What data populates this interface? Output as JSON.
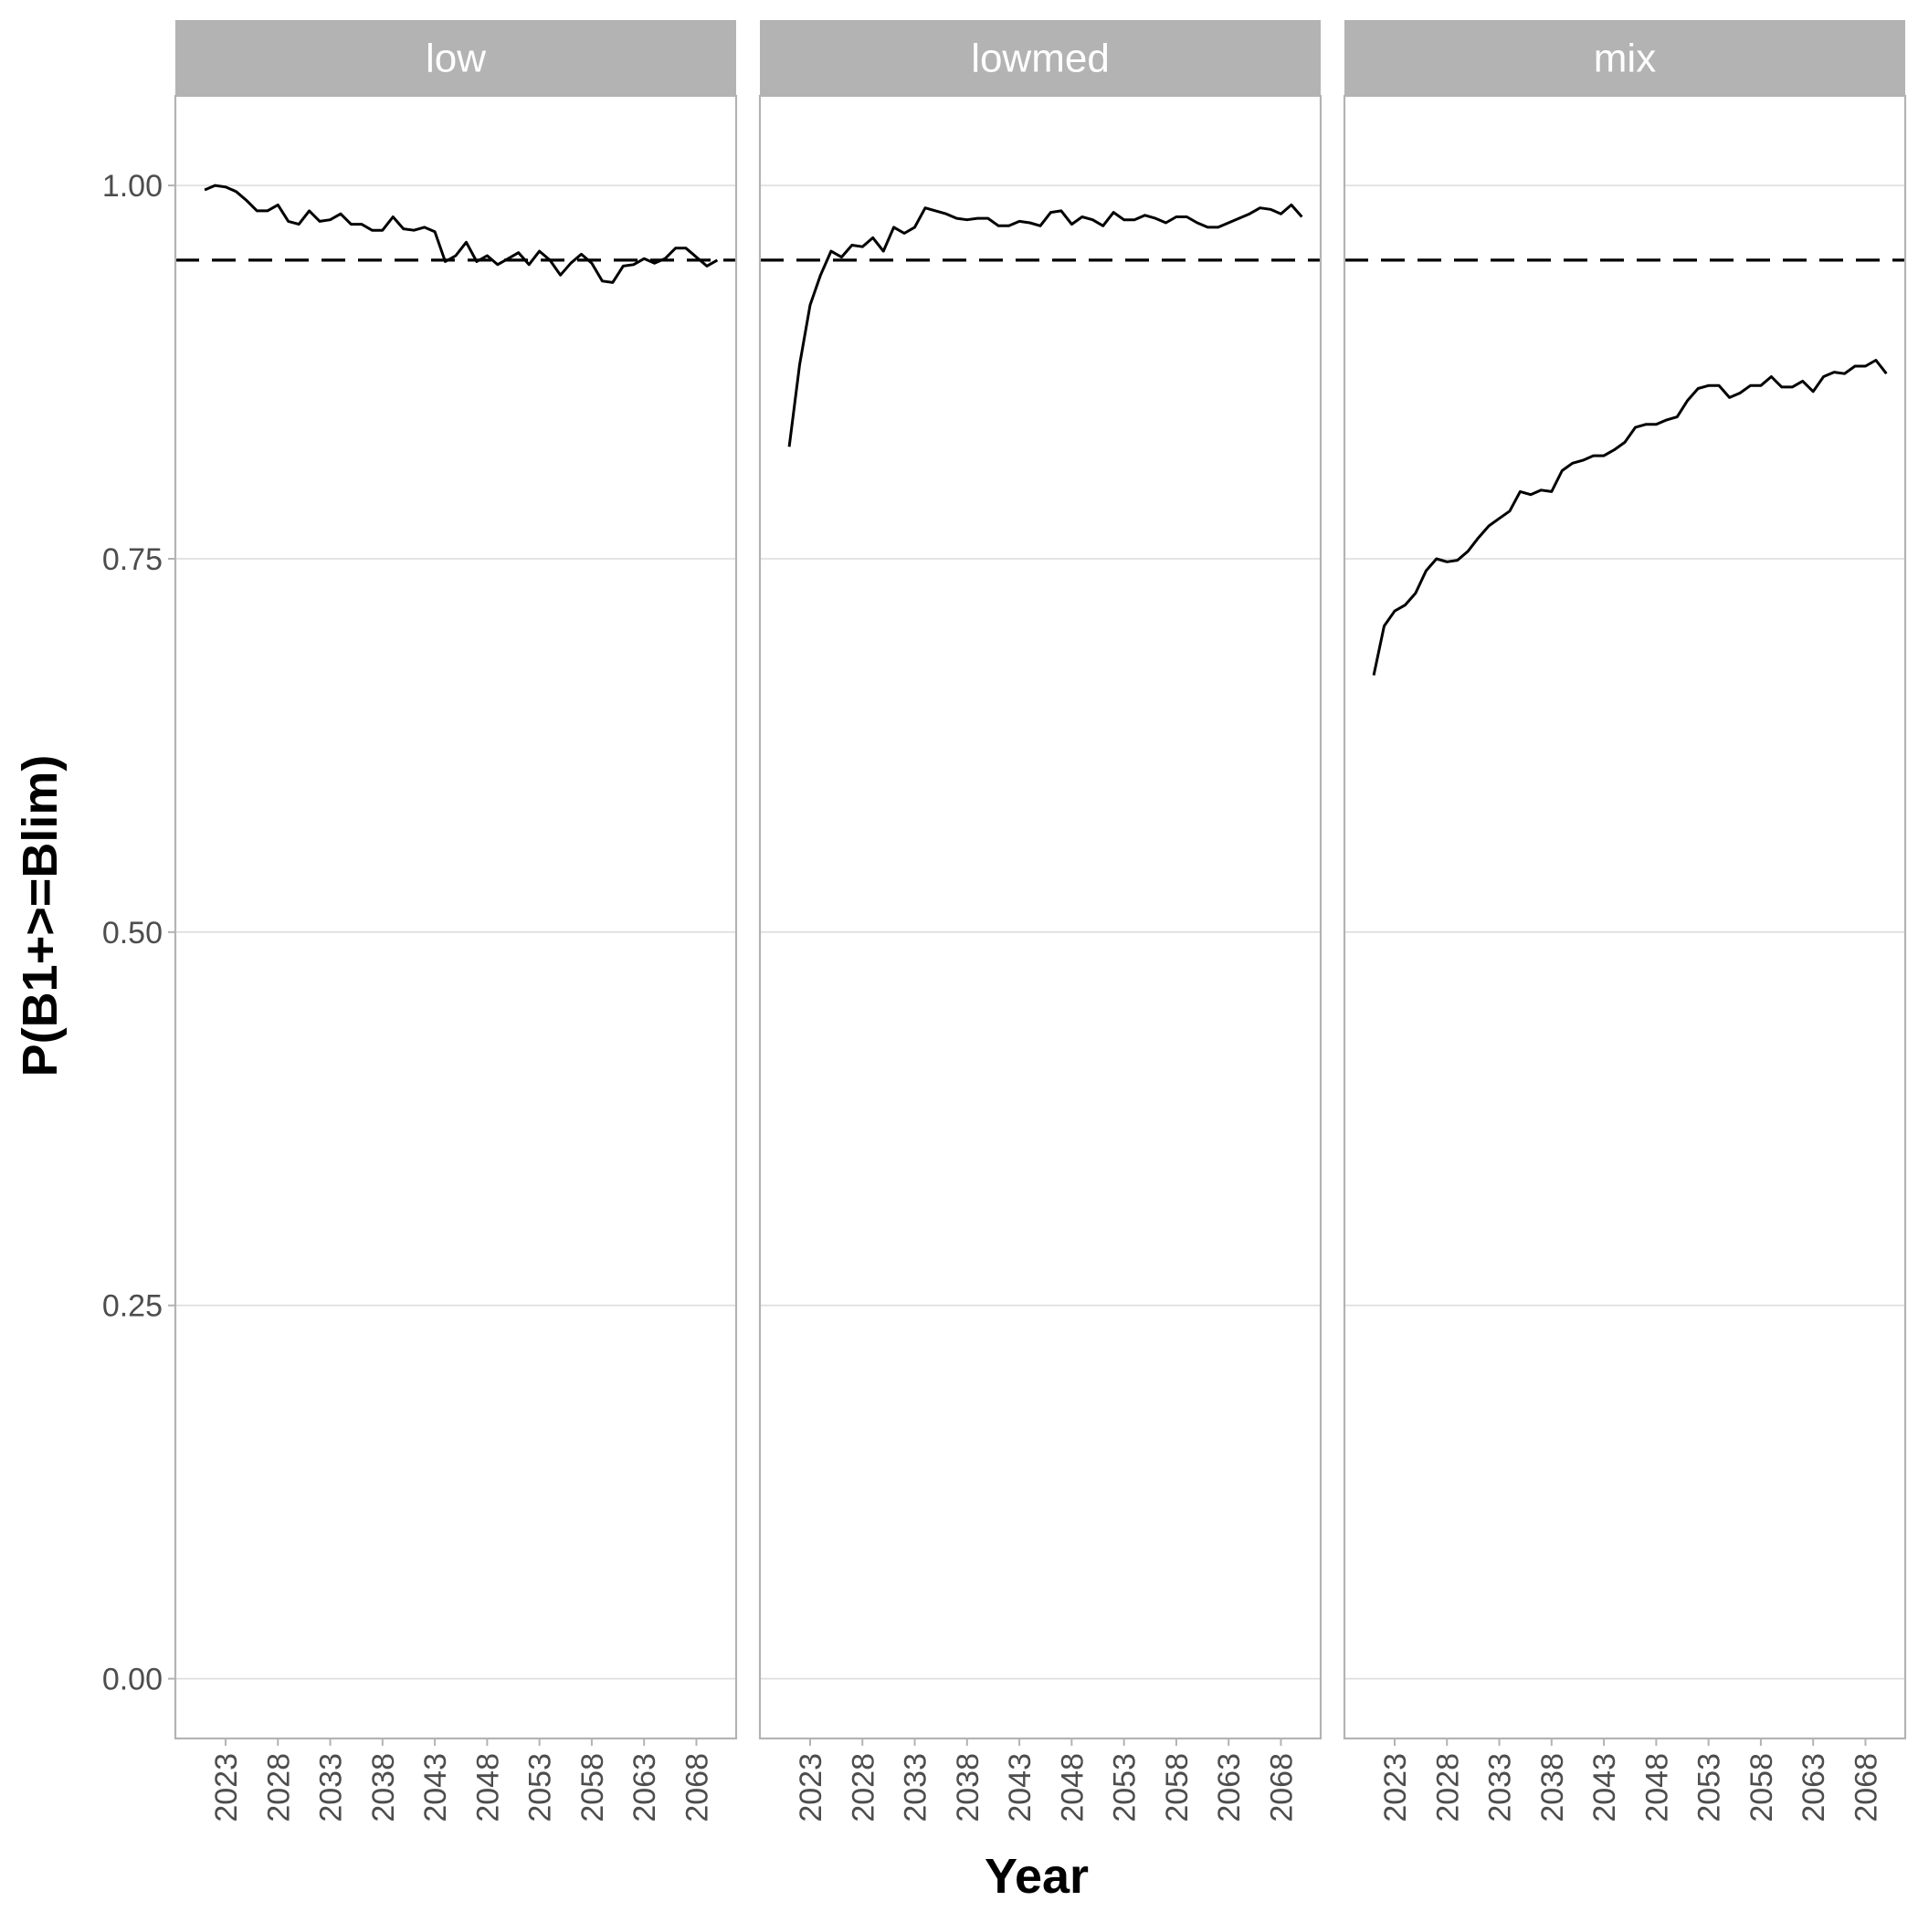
{
  "chart_data": {
    "type": "line",
    "xlabel": "Year",
    "ylabel": "P(B1+>=Blim)",
    "ylim": [
      -0.04,
      1.06
    ],
    "yticks": [
      0.0,
      0.25,
      0.5,
      0.75,
      1.0
    ],
    "ytick_labels": [
      "0.00",
      "0.25",
      "0.50",
      "0.75",
      "1.00"
    ],
    "xlim": [
      2018.2,
      2071.8
    ],
    "xticks": [
      2023,
      2028,
      2033,
      2038,
      2043,
      2048,
      2053,
      2058,
      2063,
      2068
    ],
    "xtick_labels": [
      "2023",
      "2028",
      "2033",
      "2038",
      "2043",
      "2048",
      "2053",
      "2058",
      "2063",
      "2068"
    ],
    "reference_line": {
      "y": 0.95,
      "style": "dashed"
    },
    "grid": true,
    "legend": "none",
    "x": [
      2021,
      2022,
      2023,
      2024,
      2025,
      2026,
      2027,
      2028,
      2029,
      2030,
      2031,
      2032,
      2033,
      2034,
      2035,
      2036,
      2037,
      2038,
      2039,
      2040,
      2041,
      2042,
      2043,
      2044,
      2045,
      2046,
      2047,
      2048,
      2049,
      2050,
      2051,
      2052,
      2053,
      2054,
      2055,
      2056,
      2057,
      2058,
      2059,
      2060,
      2061,
      2062,
      2063,
      2064,
      2065,
      2066,
      2067,
      2068,
      2069,
      2070
    ],
    "panels": [
      {
        "name": "low",
        "values": [
          0.997,
          1.0,
          0.999,
          0.996,
          0.99,
          0.983,
          0.983,
          0.987,
          0.976,
          0.974,
          0.983,
          0.976,
          0.977,
          0.981,
          0.974,
          0.974,
          0.97,
          0.97,
          0.979,
          0.971,
          0.97,
          0.972,
          0.969,
          0.949,
          0.953,
          0.962,
          0.949,
          0.953,
          0.947,
          0.951,
          0.955,
          0.947,
          0.956,
          0.95,
          0.94,
          0.948,
          0.954,
          0.948,
          0.936,
          0.935,
          0.946,
          0.947,
          0.951,
          0.948,
          0.951,
          0.958,
          0.958,
          0.952,
          0.946,
          0.95
        ]
      },
      {
        "name": "lowmed",
        "values": [
          0.825,
          0.88,
          0.92,
          0.94,
          0.956,
          0.952,
          0.96,
          0.959,
          0.965,
          0.956,
          0.972,
          0.968,
          0.972,
          0.985,
          0.983,
          0.981,
          0.978,
          0.977,
          0.978,
          0.978,
          0.973,
          0.973,
          0.976,
          0.975,
          0.973,
          0.982,
          0.983,
          0.974,
          0.979,
          0.977,
          0.973,
          0.982,
          0.977,
          0.977,
          0.98,
          0.978,
          0.975,
          0.979,
          0.979,
          0.975,
          0.972,
          0.972,
          0.975,
          0.978,
          0.981,
          0.985,
          0.984,
          0.981,
          0.987,
          0.979
        ]
      },
      {
        "name": "mix",
        "values": [
          0.672,
          0.705,
          0.715,
          0.719,
          0.727,
          0.742,
          0.75,
          0.748,
          0.749,
          0.755,
          0.764,
          0.772,
          0.777,
          0.782,
          0.795,
          0.793,
          0.796,
          0.795,
          0.809,
          0.814,
          0.816,
          0.819,
          0.819,
          0.823,
          0.828,
          0.838,
          0.84,
          0.84,
          0.843,
          0.845,
          0.856,
          0.864,
          0.866,
          0.866,
          0.858,
          0.861,
          0.866,
          0.866,
          0.872,
          0.865,
          0.865,
          0.869,
          0.862,
          0.872,
          0.875,
          0.874,
          0.879,
          0.879,
          0.883,
          0.874
        ]
      }
    ]
  }
}
